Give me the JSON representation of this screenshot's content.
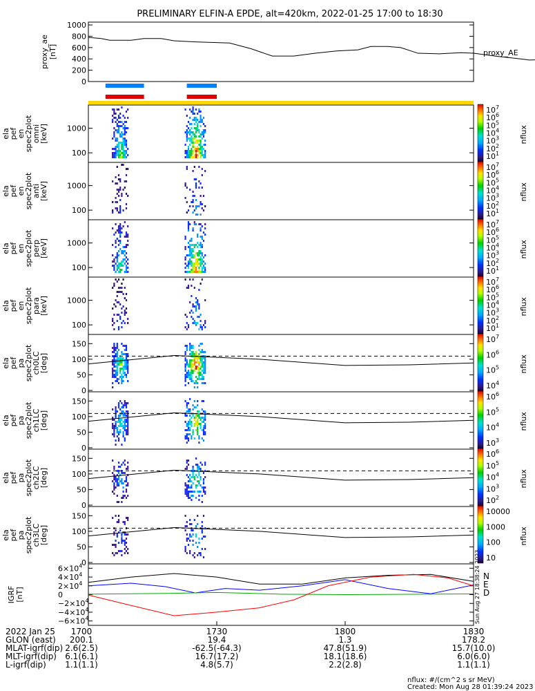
{
  "title": "PRELIMINARY ELFIN-A EPDE, alt=420km, 2022-01-25 17:00 to 18:30",
  "ae_panel": {
    "ylabel": [
      "proxy_ae",
      "[nT]"
    ],
    "yticks": [
      "1000",
      "800",
      "600",
      "400",
      "200",
      "0"
    ],
    "ytick_values": [
      1000,
      800,
      600,
      400,
      200,
      0
    ],
    "ylim": [
      0,
      1050
    ],
    "series_label": "proxy_AE",
    "values": [
      [
        0,
        780
      ],
      [
        3,
        760
      ],
      [
        5,
        730
      ],
      [
        10,
        730
      ],
      [
        13,
        760
      ],
      [
        17,
        760
      ],
      [
        20,
        720
      ],
      [
        25,
        700
      ],
      [
        33,
        680
      ],
      [
        38,
        580
      ],
      [
        43,
        450
      ],
      [
        48,
        450
      ],
      [
        53,
        500
      ],
      [
        58,
        540
      ],
      [
        63,
        560
      ],
      [
        66,
        620
      ],
      [
        70,
        620
      ],
      [
        73,
        600
      ],
      [
        77,
        500
      ],
      [
        82,
        490
      ],
      [
        87,
        510
      ],
      [
        90,
        500
      ],
      [
        95,
        450
      ],
      [
        101,
        400
      ],
      [
        103,
        380
      ],
      [
        107,
        390
      ],
      [
        110,
        410
      ],
      [
        113,
        430
      ],
      [
        116,
        450
      ]
    ]
  },
  "colorbars": [
    {
      "labels": [
        "10^7",
        "10^6",
        "10^5",
        "10^4",
        "10^3",
        "10^2",
        "10^1"
      ],
      "unit": "nflux"
    },
    {
      "labels": [
        "10^7",
        "10^6",
        "10^5",
        "10^4",
        "10^3",
        "10^2",
        "10^1"
      ],
      "unit": "nflux"
    },
    {
      "labels": [
        "10^7",
        "10^6",
        "10^5",
        "10^4",
        "10^3",
        "10^2",
        "10^1"
      ],
      "unit": "nflux"
    },
    {
      "labels": [
        "10^7",
        "10^6",
        "10^5",
        "10^4",
        "10^3",
        "10^2",
        "10^1"
      ],
      "unit": "nflux"
    },
    {
      "labels": [
        "10^7",
        "10^6",
        "10^5",
        "10^4"
      ],
      "unit": "nflux"
    },
    {
      "labels": [
        "10^6",
        "10^5",
        "10^4",
        "10^3"
      ],
      "unit": "nflux"
    },
    {
      "labels": [
        "10^6",
        "10^5",
        "10^4",
        "10^3",
        "10^2"
      ],
      "unit": "nflux"
    },
    {
      "labels": [
        "10000",
        "1000",
        "100",
        "10"
      ],
      "unit": "nflux"
    }
  ],
  "energy_panels": [
    {
      "ylabel": [
        "ela",
        "pef",
        "en",
        "spec2plot",
        "omni",
        "[keV]"
      ],
      "yticks": [
        "1000",
        "100"
      ],
      "ytick_values": [
        1000,
        100
      ],
      "intensity": 1.0
    },
    {
      "ylabel": [
        "ela",
        "pef",
        "en",
        "spec2plot",
        "anti",
        "[keV]"
      ],
      "yticks": [
        "1000",
        "100"
      ],
      "ytick_values": [
        1000,
        100
      ],
      "intensity": 0.35
    },
    {
      "ylabel": [
        "ela",
        "pef",
        "en",
        "spec2plot",
        "perp",
        "[keV]"
      ],
      "yticks": [
        "1000",
        "100"
      ],
      "ytick_values": [
        1000,
        100
      ],
      "intensity": 0.9
    },
    {
      "ylabel": [
        "ela",
        "pef",
        "en",
        "spec2plot",
        "para",
        "[keV]"
      ],
      "yticks": [
        "1000",
        "100"
      ],
      "ytick_values": [
        1000,
        100
      ],
      "intensity": 0.4
    }
  ],
  "pitch_panels": [
    {
      "ylabel": [
        "ela",
        "pef",
        "pa",
        "spec2plot",
        "ch0LC",
        "[deg]"
      ],
      "yticks": [
        "150",
        "100",
        "50",
        "0"
      ],
      "ytick_values": [
        150,
        100,
        50,
        0
      ],
      "intensity": 1.0
    },
    {
      "ylabel": [
        "ela",
        "pef",
        "pa",
        "spec2plot",
        "ch1LC",
        "[deg]"
      ],
      "yticks": [
        "150",
        "100",
        "50",
        "0"
      ],
      "ytick_values": [
        150,
        100,
        50,
        0
      ],
      "intensity": 0.8
    },
    {
      "ylabel": [
        "ela",
        "pef",
        "pa",
        "spec2plot",
        "ch2LC",
        "[deg]"
      ],
      "yticks": [
        "150",
        "100",
        "50",
        "0"
      ],
      "ytick_values": [
        150,
        100,
        50,
        0
      ],
      "intensity": 0.6
    },
    {
      "ylabel": [
        "ela",
        "pef",
        "pa",
        "spec2plot",
        "ch3LC",
        "[deg]"
      ],
      "yticks": [
        "150",
        "100",
        "50",
        "0"
      ],
      "ytick_values": [
        150,
        100,
        50,
        0
      ],
      "intensity": 0.45
    }
  ],
  "igrf_panel": {
    "ylabel": [
      "IGRF",
      "[nT]"
    ],
    "yticks": [
      "6×10^4",
      "4×10^4",
      "2×10^4",
      "0",
      "−2×10^4",
      "−4×10^4",
      "−6×10^4"
    ],
    "ytick_values": [
      60000,
      40000,
      20000,
      0,
      -20000,
      -40000,
      -60000
    ],
    "legend": [
      "N",
      "E",
      "D"
    ],
    "legend_colors": [
      "#0000ff",
      "#00aa00",
      "#ff0000"
    ],
    "side_text": "Sun Aug 27 18:38:24 2023"
  },
  "orbit_bars": {
    "colors": [
      "#0080ff",
      "#e00000"
    ],
    "segments_minutes": [
      [
        4,
        13
      ],
      [
        23,
        30
      ]
    ],
    "track_color": "#ffd700"
  },
  "x_axis": {
    "tick_minutes": [
      0,
      30,
      60,
      90
    ],
    "tick_labels": [
      "1700",
      "1730",
      "1800",
      "1830"
    ]
  },
  "ephemeris": {
    "rows": [
      {
        "label": "2022 Jan 25",
        "values": [
          "1700",
          "1730",
          "1800",
          "1830"
        ]
      },
      {
        "label": "GLON (east)",
        "values": [
          "200.1",
          "19.4",
          "1.3",
          "178.2"
        ]
      },
      {
        "label": "MLAT-igrf(dip)",
        "values": [
          "2.6(2.5)",
          "-62.5(-64.3)",
          "47.8(51.9)",
          "15.7(10.0)"
        ]
      },
      {
        "label": "MLT-igrf(dip)",
        "values": [
          "6.1(6.1)",
          "16.7(17.2)",
          "18.1(18.6)",
          "6.0(6.0)"
        ]
      },
      {
        "label": "L-igrf(dip)",
        "values": [
          "1.1(1.1)",
          "4.8(5.7)",
          "2.2(2.8)",
          "1.1(1.1)"
        ]
      }
    ]
  },
  "footer": {
    "units": "nflux: #/(cm^2 s sr MeV)",
    "created": "Created: Mon Aug 28 01:39:24 2023"
  }
}
